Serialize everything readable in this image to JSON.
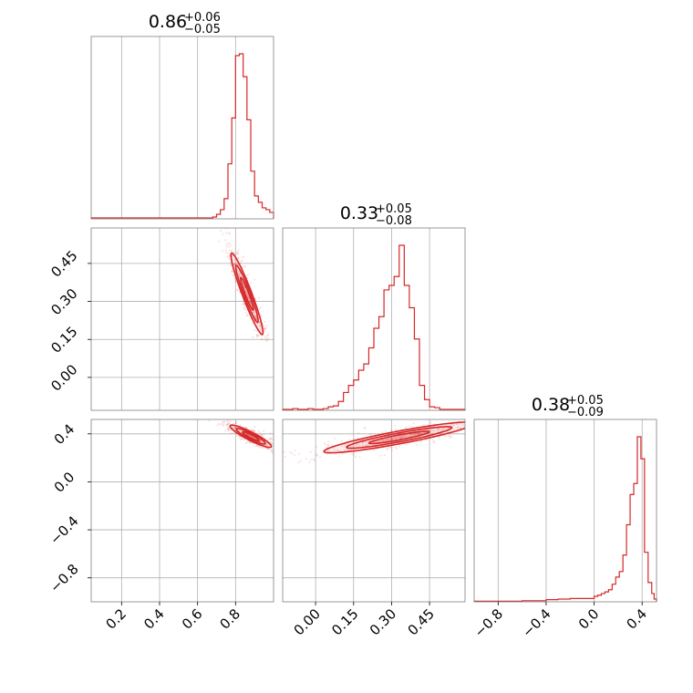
{
  "chart_data": {
    "type": "corner",
    "color": "#d62728",
    "parameters": [
      {
        "title_value": "0.86",
        "title_plus": "+0.06",
        "title_minus": "−0.05",
        "range": [
          0.04,
          1.0
        ]
      },
      {
        "title_value": "0.33",
        "title_plus": "+0.05",
        "title_minus": "−0.08",
        "range": [
          -0.13,
          0.59
        ]
      },
      {
        "title_value": "0.38",
        "title_plus": "+0.05",
        "title_minus": "−0.09",
        "range": [
          -1.0,
          0.52
        ]
      }
    ],
    "ticks": [
      {
        "values": [
          0.2,
          0.4,
          0.6,
          0.8
        ],
        "labels": [
          "0.2",
          "0.4",
          "0.6",
          "0.8"
        ]
      },
      {
        "values": [
          0.0,
          0.15,
          0.3,
          0.45
        ],
        "labels": [
          "0.00",
          "0.15",
          "0.30",
          "0.45"
        ]
      },
      {
        "values": [
          -0.8,
          -0.4,
          0.0,
          0.4
        ],
        "labels": [
          "−0.8",
          "−0.4",
          "0.0",
          "0.4"
        ]
      }
    ],
    "grid": true,
    "histograms": [
      {
        "bin_edges": [
          0.04,
          0.66,
          0.68,
          0.7,
          0.72,
          0.74,
          0.76,
          0.78,
          0.8,
          0.82,
          0.84,
          0.86,
          0.88,
          0.9,
          0.92,
          0.94,
          0.96,
          0.98,
          1.0
        ],
        "counts": [
          1,
          1,
          2,
          5,
          10,
          22,
          60,
          110,
          178,
          180,
          155,
          108,
          52,
          25,
          18,
          12,
          10,
          7
        ]
      },
      {
        "bin_edges": [
          -0.13,
          -0.11,
          -0.09,
          -0.07,
          -0.05,
          -0.03,
          -0.01,
          0.01,
          0.03,
          0.05,
          0.07,
          0.09,
          0.11,
          0.13,
          0.15,
          0.17,
          0.19,
          0.21,
          0.23,
          0.25,
          0.27,
          0.29,
          0.31,
          0.33,
          0.35,
          0.37,
          0.39,
          0.41,
          0.43,
          0.45,
          0.47,
          0.49,
          0.51,
          0.53,
          0.55,
          0.57,
          0.59
        ],
        "counts": [
          1,
          1,
          2,
          1,
          1,
          2,
          1,
          1,
          2,
          4,
          5,
          10,
          20,
          28,
          34,
          45,
          52,
          70,
          92,
          105,
          135,
          140,
          150,
          185,
          140,
          115,
          80,
          28,
          12,
          4,
          3,
          1,
          1,
          1,
          1,
          1
        ]
      },
      {
        "bin_edges": [
          -1.0,
          -0.6,
          -0.4,
          -0.3,
          -0.2,
          -0.1,
          0.0,
          0.03,
          0.06,
          0.09,
          0.12,
          0.15,
          0.18,
          0.21,
          0.24,
          0.27,
          0.3,
          0.33,
          0.36,
          0.39,
          0.42,
          0.45,
          0.48,
          0.5,
          0.52
        ],
        "counts": [
          1,
          2,
          4,
          5,
          6,
          6,
          10,
          12,
          15,
          18,
          22,
          32,
          45,
          55,
          85,
          140,
          195,
          215,
          300,
          260,
          90,
          35,
          15,
          5
        ]
      }
    ],
    "pair_clouds": [
      {
        "pair": "p1_vs_p0",
        "ellipse_center": [
          0.86,
          0.33
        ],
        "principal_angle_deg": -63,
        "sigma_major": 0.09,
        "sigma_minor": 0.012
      },
      {
        "pair": "p2_vs_p0",
        "ellipse_center": [
          0.88,
          0.38
        ],
        "principal_angle_deg": -40,
        "sigma_major": 0.07,
        "sigma_minor": 0.015
      },
      {
        "pair": "p2_vs_p1",
        "ellipse_center": [
          0.33,
          0.37
        ],
        "principal_angle_deg": 22,
        "sigma_major": 0.16,
        "sigma_minor": 0.025
      }
    ]
  }
}
